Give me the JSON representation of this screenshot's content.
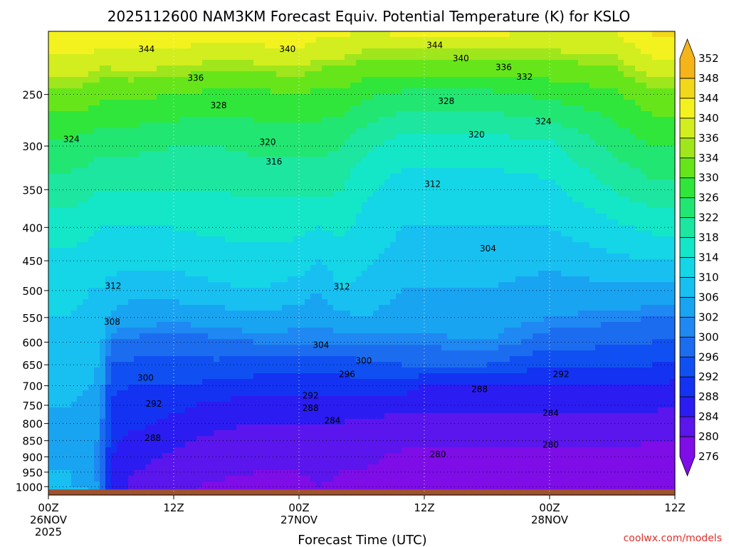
{
  "chart_data": {
    "type": "heatmap",
    "title": "2025112600 NAM3KM Forecast Equiv. Potential Temperature (K) for KSLO",
    "xlabel": "Forecast Time (UTC)",
    "ylabel": "",
    "y_scale": "log-pressure (hPa), decreasing upward",
    "ylim": [
      1030,
      200
    ],
    "xlim_hours": [
      0,
      60
    ],
    "x_ticks": [
      {
        "hour": 0,
        "label": "00Z",
        "sub": "26NOV",
        "sub2": "2025"
      },
      {
        "hour": 12,
        "label": "12Z",
        "sub": "",
        "sub2": ""
      },
      {
        "hour": 24,
        "label": "00Z",
        "sub": "27NOV",
        "sub2": ""
      },
      {
        "hour": 36,
        "label": "12Z",
        "sub": "",
        "sub2": ""
      },
      {
        "hour": 48,
        "label": "00Z",
        "sub": "28NOV",
        "sub2": ""
      },
      {
        "hour": 60,
        "label": "12Z",
        "sub": "",
        "sub2": ""
      }
    ],
    "y_ticks": [
      250,
      300,
      350,
      400,
      450,
      500,
      550,
      600,
      650,
      700,
      750,
      800,
      850,
      900,
      950,
      1000
    ],
    "grid": true,
    "surface_color": "#a0522d",
    "colorbar": {
      "position": "right",
      "levels": [
        276,
        280,
        284,
        288,
        292,
        296,
        300,
        302,
        306,
        310,
        314,
        318,
        322,
        326,
        330,
        334,
        336,
        340,
        344,
        348,
        352
      ],
      "colors": [
        "#7e0de8",
        "#5a16ec",
        "#2b1cf2",
        "#1432f2",
        "#1050f2",
        "#1c6cf0",
        "#1f88f2",
        "#19a4f2",
        "#18c0f2",
        "#14d6e6",
        "#14e6c8",
        "#1ce6a0",
        "#22e672",
        "#30e63a",
        "#66e61a",
        "#a0e61c",
        "#d2ee1e",
        "#f4f21e",
        "#f2d81a",
        "#f4b41a"
      ]
    },
    "profiles": {
      "hours": [
        0,
        2,
        4,
        5,
        6,
        8,
        12,
        16,
        20,
        24,
        26,
        28,
        30,
        34,
        36,
        42,
        48,
        54,
        58,
        60
      ],
      "levels_hPa": [
        1000,
        950,
        900,
        850,
        800,
        750,
        700,
        650,
        600,
        550,
        500,
        450,
        400,
        350,
        300,
        250,
        200
      ],
      "theta_e_K": [
        [
          307,
          306,
          305,
          305,
          305,
          306,
          307,
          308,
          309,
          310,
          311,
          313,
          316,
          320,
          325,
          333,
          344
        ],
        [
          306,
          306,
          305,
          305,
          305,
          306,
          307,
          308,
          309,
          310,
          311,
          313,
          316,
          320,
          325,
          333,
          344
        ],
        [
          306,
          305,
          304,
          304,
          305,
          305,
          306,
          307,
          308,
          309,
          310,
          312,
          315,
          319,
          324,
          332,
          344
        ],
        [
          300,
          299,
          300,
          301,
          302,
          303,
          304,
          306,
          307,
          308,
          310,
          311,
          314,
          318,
          323,
          331,
          343
        ],
        [
          288,
          288,
          288,
          289,
          290,
          291,
          293,
          296,
          300,
          305,
          309,
          311,
          314,
          318,
          323,
          331,
          343
        ],
        [
          283,
          284,
          286,
          287,
          289,
          290,
          292,
          295,
          299,
          304,
          307,
          311,
          314,
          318,
          323,
          331,
          344
        ],
        [
          281,
          282,
          283,
          285,
          287,
          289,
          292,
          295,
          298,
          303,
          308,
          311,
          314,
          318,
          322,
          330,
          344
        ],
        [
          279,
          281,
          282,
          283,
          285,
          287,
          291,
          295,
          299,
          304,
          309,
          312,
          315,
          318,
          322,
          329,
          342
        ],
        [
          279,
          280,
          281,
          282,
          284,
          286,
          290,
          294,
          300,
          305,
          310,
          313,
          315,
          319,
          323,
          329,
          343
        ],
        [
          279,
          280,
          281,
          282,
          284,
          286,
          290,
          294,
          300,
          304,
          308,
          312,
          315,
          319,
          323,
          330,
          344
        ],
        [
          280,
          281,
          282,
          283,
          284,
          286,
          290,
          294,
          300,
          303,
          306,
          310,
          314,
          319,
          323,
          329,
          341
        ],
        [
          279,
          280,
          281,
          282,
          284,
          286,
          290,
          294,
          300,
          305,
          310,
          312,
          315,
          318,
          322,
          329,
          341
        ],
        [
          280,
          280,
          281,
          282,
          283,
          286,
          290,
          295,
          300,
          306,
          309,
          311,
          313,
          315,
          319,
          327,
          340
        ],
        [
          277,
          278,
          279,
          281,
          283,
          285,
          290,
          296,
          301,
          304,
          306,
          308,
          310,
          312,
          316,
          325,
          341
        ],
        [
          277,
          278,
          279,
          281,
          283,
          285,
          288,
          296,
          301,
          304,
          306,
          308,
          310,
          312,
          316,
          325,
          341
        ],
        [
          277,
          278,
          279,
          281,
          283,
          285,
          288,
          296,
          302,
          304,
          306,
          308,
          310,
          312,
          316,
          325,
          341
        ],
        [
          278,
          278,
          279,
          281,
          283,
          285,
          288,
          292,
          298,
          302,
          304,
          307,
          310,
          313,
          317,
          327,
          340
        ],
        [
          277,
          278,
          279,
          281,
          283,
          285,
          288,
          292,
          297,
          301,
          305,
          309,
          313,
          318,
          323,
          329,
          340
        ],
        [
          277,
          278,
          279,
          280,
          282,
          285,
          288,
          292,
          296,
          300,
          305,
          310,
          315,
          321,
          326,
          333,
          345
        ],
        [
          276,
          277,
          279,
          280,
          282,
          284,
          287,
          291,
          295,
          299,
          305,
          310,
          315,
          321,
          326,
          333,
          345
        ]
      ]
    },
    "contour_labels": [
      {
        "text": "344",
        "hour": 9.4,
        "hPa": 213
      },
      {
        "text": "340",
        "hour": 22.9,
        "hPa": 213
      },
      {
        "text": "344",
        "hour": 37,
        "hPa": 210
      },
      {
        "text": "340",
        "hour": 39.5,
        "hPa": 220
      },
      {
        "text": "336",
        "hour": 43.6,
        "hPa": 227
      },
      {
        "text": "332",
        "hour": 45.6,
        "hPa": 235
      },
      {
        "text": "336",
        "hour": 14.1,
        "hPa": 236
      },
      {
        "text": "328",
        "hour": 16.3,
        "hPa": 260
      },
      {
        "text": "328",
        "hour": 38.1,
        "hPa": 256
      },
      {
        "text": "324",
        "hour": 47.4,
        "hPa": 275
      },
      {
        "text": "320",
        "hour": 41,
        "hPa": 288
      },
      {
        "text": "324",
        "hour": 2.2,
        "hPa": 293
      },
      {
        "text": "320",
        "hour": 21,
        "hPa": 296
      },
      {
        "text": "316",
        "hour": 21.6,
        "hPa": 317
      },
      {
        "text": "312",
        "hour": 36.8,
        "hPa": 343
      },
      {
        "text": "304",
        "hour": 42.1,
        "hPa": 431
      },
      {
        "text": "312",
        "hour": 6.2,
        "hPa": 492
      },
      {
        "text": "312",
        "hour": 28.1,
        "hPa": 493
      },
      {
        "text": "308",
        "hour": 6.1,
        "hPa": 559
      },
      {
        "text": "304",
        "hour": 26.1,
        "hPa": 606
      },
      {
        "text": "300",
        "hour": 30.2,
        "hPa": 641
      },
      {
        "text": "296",
        "hour": 28.6,
        "hPa": 672
      },
      {
        "text": "300",
        "hour": 9.3,
        "hPa": 681
      },
      {
        "text": "292",
        "hour": 49.1,
        "hPa": 672
      },
      {
        "text": "288",
        "hour": 41.3,
        "hPa": 709
      },
      {
        "text": "292",
        "hour": 25.1,
        "hPa": 725
      },
      {
        "text": "292",
        "hour": 10.1,
        "hPa": 746
      },
      {
        "text": "288",
        "hour": 25.1,
        "hPa": 758
      },
      {
        "text": "284",
        "hour": 48.1,
        "hPa": 771
      },
      {
        "text": "284",
        "hour": 27.2,
        "hPa": 792
      },
      {
        "text": "288",
        "hour": 10,
        "hPa": 842
      },
      {
        "text": "280",
        "hour": 48.1,
        "hPa": 862
      },
      {
        "text": "280",
        "hour": 37.3,
        "hPa": 892
      }
    ]
  },
  "credit": "coolwx.com/models"
}
